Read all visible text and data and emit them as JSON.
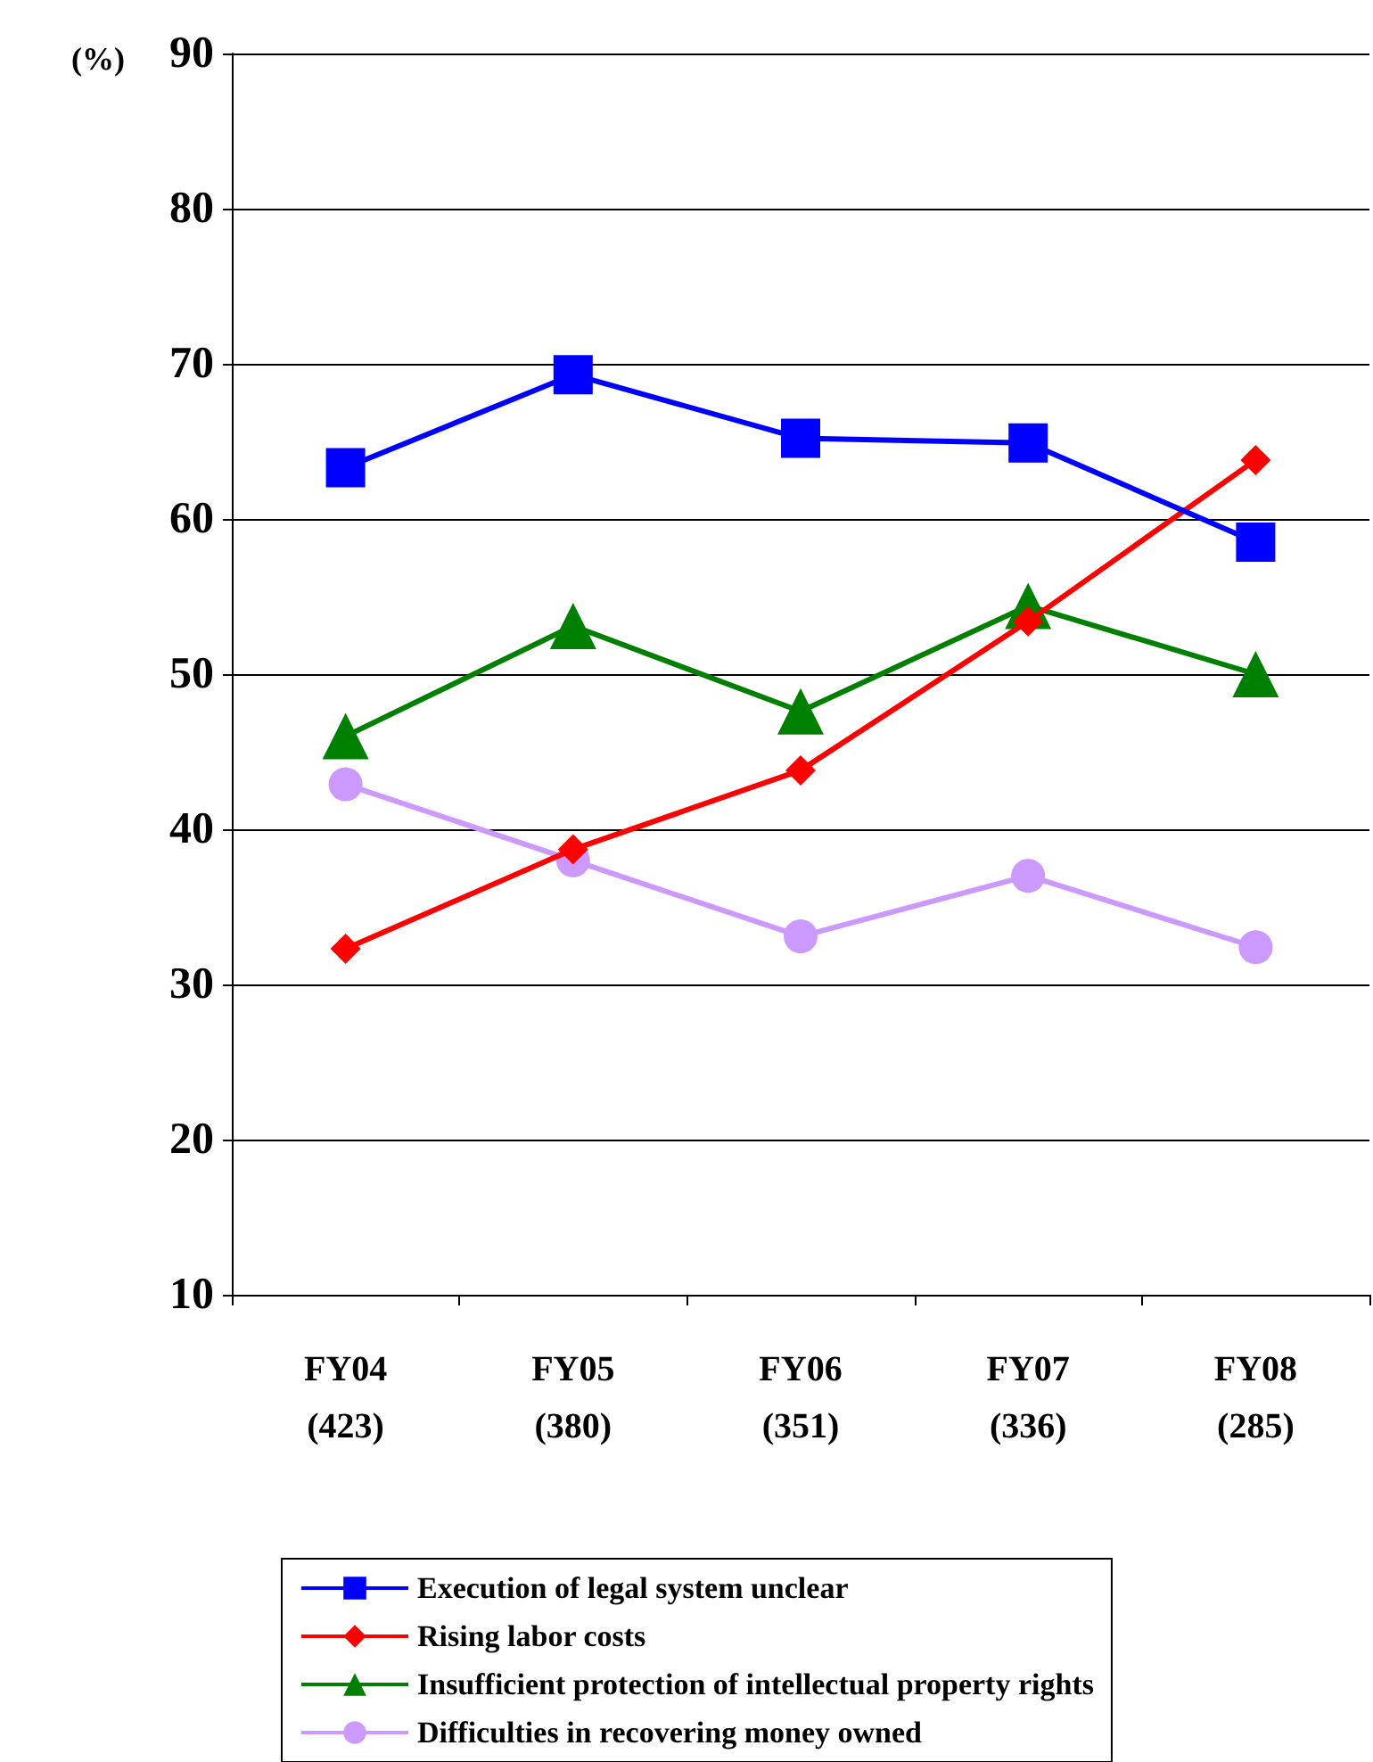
{
  "chart_data": {
    "type": "line",
    "ylabel": "(%)",
    "categories": [
      "FY04\n(423)",
      "FY05\n(380)",
      "FY06\n(351)",
      "FY07\n(336)",
      "FY08\n(285)"
    ],
    "series": [
      {
        "name": "Execution of legal system unclear",
        "color": "#0000ff",
        "marker": "square",
        "values": [
          63.3,
          69.3,
          65.2,
          64.9,
          58.5
        ]
      },
      {
        "name": "Rising labor costs",
        "color": "#ff0000",
        "marker": "diamond",
        "values": [
          32.3,
          38.7,
          43.8,
          53.4,
          63.8
        ]
      },
      {
        "name": "Insufficient protection of intellectual property rights",
        "color": "#008000",
        "marker": "triangle",
        "values": [
          46.0,
          53.1,
          47.6,
          54.4,
          50.0
        ]
      },
      {
        "name": "Difficulties in recovering money owned",
        "color": "#cc99ff",
        "marker": "circle",
        "values": [
          42.9,
          38.0,
          33.1,
          37.0,
          32.4
        ]
      }
    ],
    "ylim": [
      10,
      90
    ],
    "yticks": [
      10,
      20,
      30,
      40,
      50,
      60,
      70,
      80,
      90
    ],
    "grid": "y",
    "legend": "bottom",
    "line_style": "solid"
  }
}
